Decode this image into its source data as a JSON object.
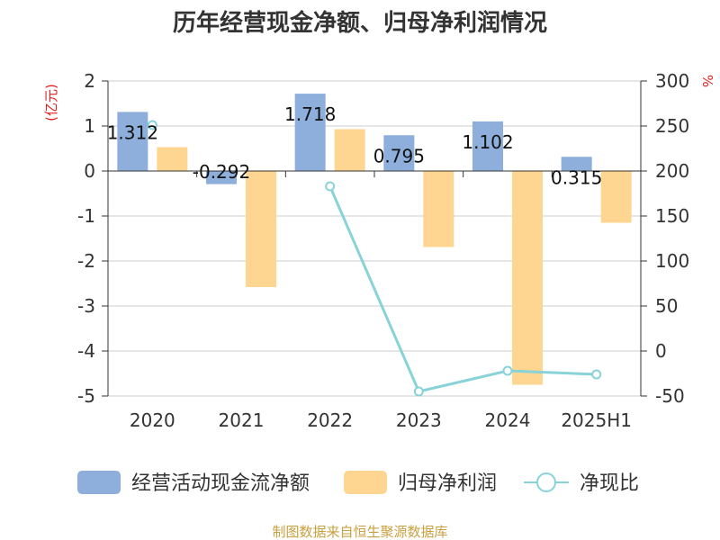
{
  "title": "历年经营现金净额、归母净利润情况",
  "source": "制图数据来自恒生聚源数据库",
  "left_unit": "(亿元)",
  "right_unit": "%",
  "colors": {
    "cash": "#8eaedb",
    "profit": "#ffd592",
    "ratio": "#88d3d8",
    "unit": "#e02020"
  },
  "chart_data": {
    "type": "bar",
    "title": "历年经营现金净额、归母净利润情况",
    "categories": [
      "2020",
      "2021",
      "2022",
      "2023",
      "2024",
      "2025H1"
    ],
    "ylim": [
      -5,
      2
    ],
    "y2lim": [
      -50,
      300
    ],
    "yticks": [
      "2",
      "1",
      "0",
      "-1",
      "-2",
      "-3",
      "-4",
      "-5"
    ],
    "y2ticks": [
      "300",
      "250",
      "200",
      "150",
      "100",
      "50",
      "0",
      "-50"
    ],
    "legend_position": "bottom",
    "series": [
      {
        "name": "经营活动现金流净额",
        "type": "bar",
        "axis": "left",
        "values": [
          1.312,
          -0.292,
          1.718,
          0.795,
          1.102,
          0.315
        ],
        "labels": [
          "1.312",
          "-0.292",
          "1.718",
          "0.795",
          "1.102",
          "0.315"
        ]
      },
      {
        "name": "归母净利润",
        "type": "bar",
        "axis": "left",
        "values": [
          0.53,
          -2.58,
          0.93,
          -1.69,
          -4.75,
          -1.15
        ]
      },
      {
        "name": "净现比",
        "type": "line",
        "axis": "right",
        "values": [
          251,
          null,
          183,
          -45,
          -22,
          -26
        ]
      }
    ]
  }
}
